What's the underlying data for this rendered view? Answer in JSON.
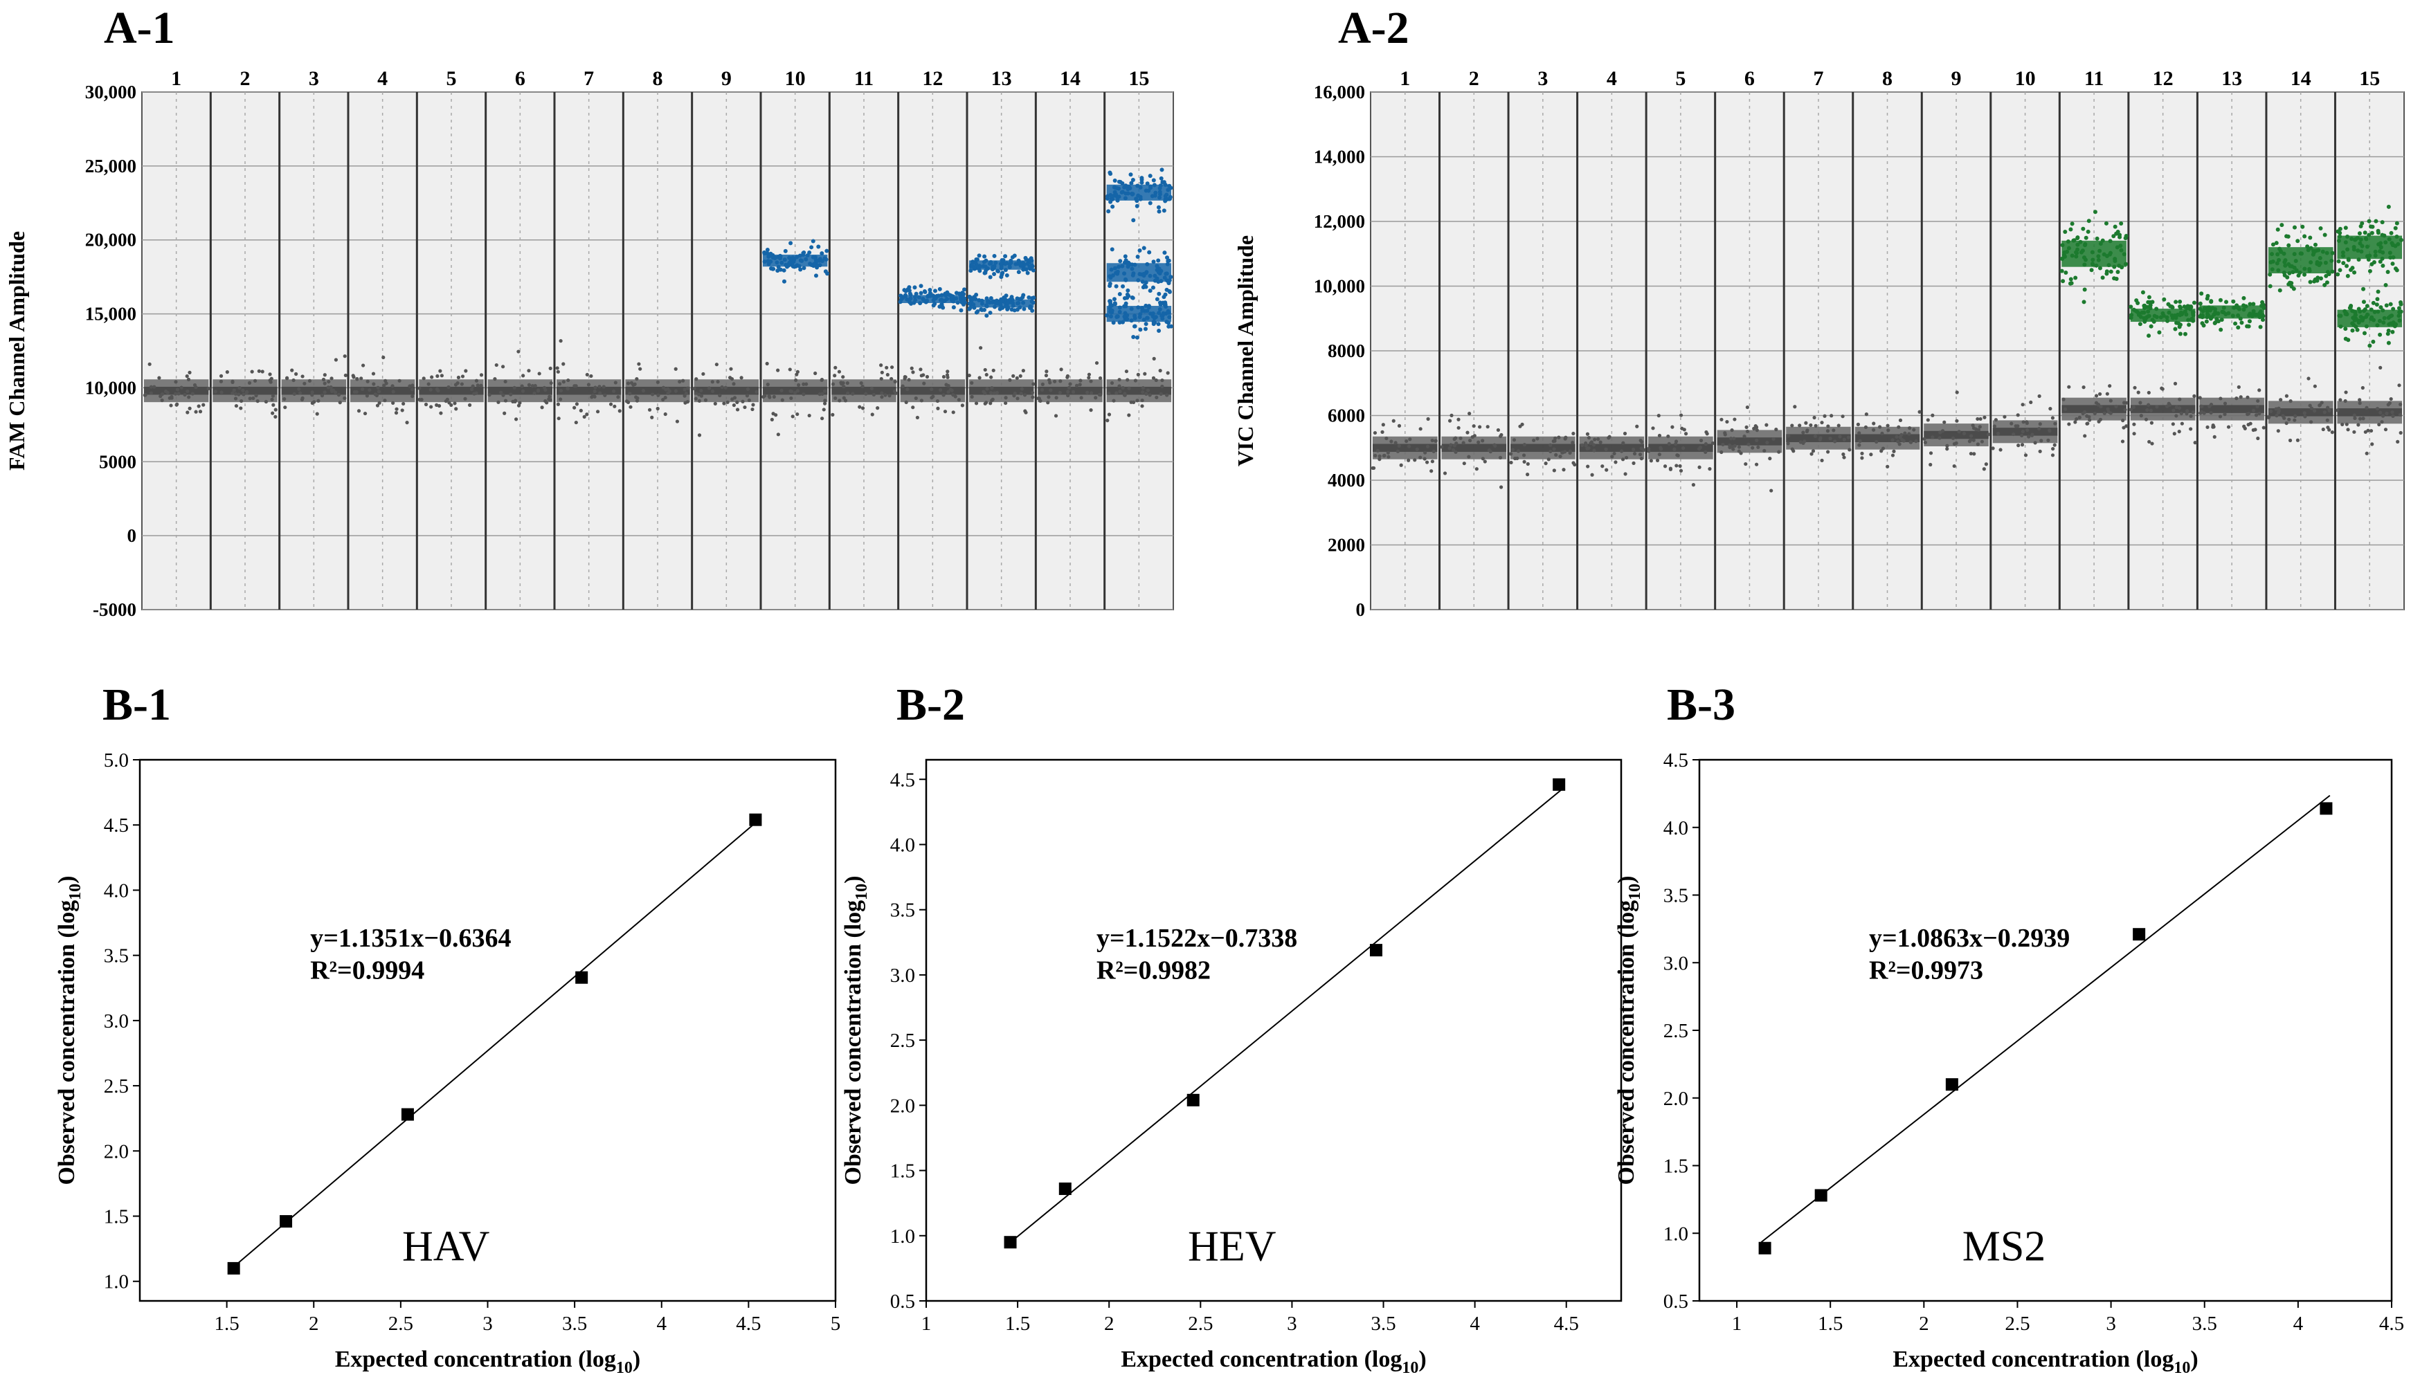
{
  "panels": {
    "a1": "A-1",
    "a2": "A-2",
    "b1": "B-1",
    "b2": "B-2",
    "b3": "B-3"
  },
  "chart_data": [
    {
      "id": "A-1",
      "type": "scatter",
      "ylabel": "FAM  Channel Amplitude",
      "xlabel": "",
      "ylim": [
        -5000,
        30000
      ],
      "yticks": [
        -5000,
        0,
        5000,
        10000,
        15000,
        20000,
        25000,
        30000
      ],
      "ytick_labels": [
        "-5000",
        "0",
        "5000",
        "10,000",
        "15,000",
        "20,000",
        "25,000",
        "30,000"
      ],
      "lanes": [
        "1",
        "2",
        "3",
        "4",
        "5",
        "6",
        "7",
        "8",
        "9",
        "10",
        "11",
        "12",
        "13",
        "14",
        "15"
      ],
      "negative_band_center": 9800,
      "positive_clusters": [
        {
          "lane": "10",
          "center": 18600,
          "spread": 900
        },
        {
          "lane": "12",
          "center": 16000,
          "spread": 600
        },
        {
          "lane": "13",
          "center": 18300,
          "spread": 700
        },
        {
          "lane": "13",
          "center": 15700,
          "spread": 600
        },
        {
          "lane": "15",
          "center": 23200,
          "spread": 1200
        },
        {
          "lane": "15",
          "center": 17800,
          "spread": 1400
        },
        {
          "lane": "15",
          "center": 15000,
          "spread": 1200
        }
      ],
      "colors": {
        "negative": "#6e6e6e",
        "positive": "#1565a8",
        "background": "#efefef"
      },
      "grid": true
    },
    {
      "id": "A-2",
      "type": "scatter",
      "ylabel": "VIC  Channel Amplitude",
      "xlabel": "",
      "ylim": [
        0,
        16000
      ],
      "yticks": [
        0,
        2000,
        4000,
        6000,
        8000,
        10000,
        12000,
        14000,
        16000
      ],
      "ytick_labels": [
        "0",
        "2000",
        "4000",
        "6000",
        "8000",
        "10,000",
        "12,000",
        "14,000",
        "16,000"
      ],
      "lanes": [
        "1",
        "2",
        "3",
        "4",
        "5",
        "6",
        "7",
        "8",
        "9",
        "10",
        "11",
        "12",
        "13",
        "14",
        "15"
      ],
      "negative_band_centers": [
        5000,
        5000,
        5000,
        5000,
        5000,
        5200,
        5300,
        5300,
        5400,
        5500,
        6200,
        6200,
        6200,
        6100,
        6100
      ],
      "positive_clusters": [
        {
          "lane": "11",
          "center": 11000,
          "spread": 900
        },
        {
          "lane": "12",
          "center": 9100,
          "spread": 450
        },
        {
          "lane": "13",
          "center": 9200,
          "spread": 450
        },
        {
          "lane": "14",
          "center": 10800,
          "spread": 900
        },
        {
          "lane": "15",
          "center": 11200,
          "spread": 800
        },
        {
          "lane": "15",
          "center": 9000,
          "spread": 600
        }
      ],
      "colors": {
        "negative": "#6e6e6e",
        "positive": "#1c7a2e",
        "background": "#efefef"
      },
      "grid": true
    },
    {
      "id": "B-1",
      "type": "scatter",
      "xlabel": "Expected concentration (log",
      "xlabel_sub": "10",
      "xlabel_end": ")",
      "ylabel": "Observed concentration (log",
      "ylabel_sub": "10",
      "ylabel_end": ")",
      "xlim": [
        1.0,
        5.0
      ],
      "ylim": [
        0.85,
        5.0
      ],
      "xticks": [
        1.5,
        2.0,
        2.5,
        3.0,
        3.5,
        4.0,
        4.5,
        5.0
      ],
      "yticks": [
        1.0,
        1.5,
        2.0,
        2.5,
        3.0,
        3.5,
        4.0,
        4.5,
        5.0
      ],
      "x": [
        1.54,
        1.84,
        2.54,
        3.54,
        4.54
      ],
      "y": [
        1.1,
        1.46,
        2.28,
        3.33,
        4.54
      ],
      "fit": {
        "slope": 1.1351,
        "intercept": -0.6364
      },
      "equation": "y=1.1351x−0.6364",
      "r2": "R²=0.9994",
      "annotation": "HAV"
    },
    {
      "id": "B-2",
      "type": "scatter",
      "xlabel": "Expected concentration (log",
      "xlabel_sub": "10",
      "xlabel_end": ")",
      "ylabel": "Observed concentration (log",
      "ylabel_sub": "10",
      "ylabel_end": ")",
      "xlim": [
        1.0,
        4.8
      ],
      "ylim": [
        0.5,
        4.65
      ],
      "xticks": [
        1.0,
        1.5,
        2.0,
        2.5,
        3.0,
        3.5,
        4.0,
        4.5
      ],
      "yticks": [
        0.5,
        1.0,
        1.5,
        2.0,
        2.5,
        3.0,
        3.5,
        4.0,
        4.5
      ],
      "x": [
        1.46,
        1.76,
        2.46,
        3.46,
        4.46
      ],
      "y": [
        0.95,
        1.36,
        2.04,
        3.19,
        4.46
      ],
      "fit": {
        "slope": 1.1522,
        "intercept": -0.7338
      },
      "equation": "y=1.1522x−0.7338",
      "r2": "R²=0.9982",
      "annotation": "HEV"
    },
    {
      "id": "B-3",
      "type": "scatter",
      "xlabel": "Expected concentration (log",
      "xlabel_sub": "10",
      "xlabel_end": ")",
      "ylabel": "Observed concentration (log",
      "ylabel_sub": "10",
      "ylabel_end": ")",
      "xlim": [
        0.8,
        4.5
      ],
      "ylim": [
        0.5,
        4.5
      ],
      "xticks": [
        1.0,
        1.5,
        2.0,
        2.5,
        3.0,
        3.5,
        4.0,
        4.5
      ],
      "yticks": [
        0.5,
        1.0,
        1.5,
        2.0,
        2.5,
        3.0,
        3.5,
        4.0,
        4.5
      ],
      "x": [
        1.15,
        1.45,
        2.15,
        3.15,
        4.15
      ],
      "y": [
        0.89,
        1.28,
        2.1,
        3.21,
        4.14
      ],
      "fit": {
        "slope": 1.0863,
        "intercept": -0.2939
      },
      "equation": "y=1.0863x−0.2939",
      "r2": "R²=0.9973",
      "annotation": "MS2"
    }
  ]
}
